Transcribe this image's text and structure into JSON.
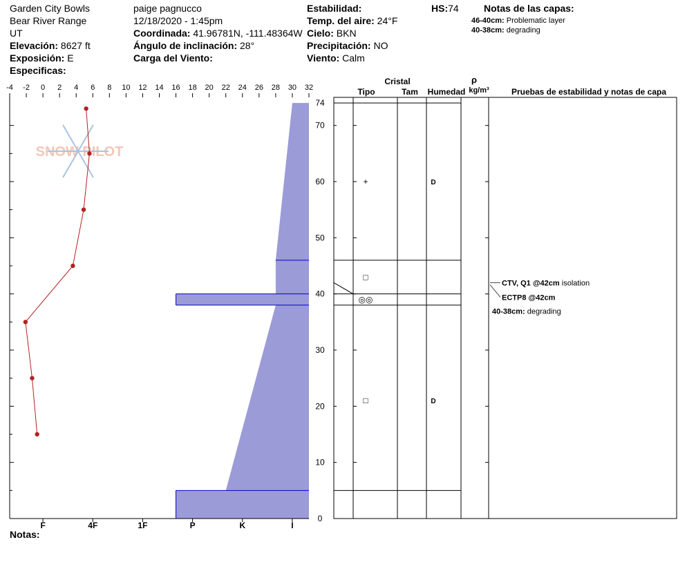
{
  "header": {
    "col1": {
      "location": "Garden City Bowls",
      "range": "Bear River Range",
      "state": "UT",
      "elevation_label": "Elevación:",
      "elevation": "8627 ft",
      "aspect_label": "Exposición:",
      "aspect": "E",
      "specifics_label": "Especificas:"
    },
    "col2": {
      "observer": "paige pagnucco",
      "datetime": "12/18/2020 - 1:45pm",
      "coord_label": "Coordinada:",
      "coord": "41.96781N, -111.48364W",
      "incline_label": "Ángulo de inclinación:",
      "incline": "28°",
      "wind_load_label": "Carga del Viento:"
    },
    "col3": {
      "stability_label": "Estabilidad:",
      "air_temp_label": "Temp. del aire:",
      "air_temp": "24°F",
      "sky_label": "Cielo:",
      "sky": "BKN",
      "precip_label": "Precipitación:",
      "precip": "NO",
      "wind_label": "Viento:",
      "wind": "Calm"
    },
    "hs_label": "HS:",
    "hs": "74",
    "layer_notes": {
      "title": "Notas de las capas:",
      "items": [
        {
          "range": "46-40cm:",
          "text": "Problematic layer"
        },
        {
          "range": "40-38cm:",
          "text": "degrading"
        }
      ]
    }
  },
  "watermark": "SNOW PILOT",
  "footer": {
    "notes_label": "Notas:"
  },
  "right_table": {
    "cristal": "Cristal",
    "rho": "ρ",
    "tipo": "Tipo",
    "tam": "Tam",
    "humedad": "Humedad",
    "density_unit": "kg/m³",
    "pruebas": "Pruebas de estabilidad y notas de capa",
    "layer_boundaries": [
      74,
      46,
      40,
      38,
      5
    ],
    "crystals": [
      {
        "depth": 60,
        "symbol": "+",
        "moisture": "D"
      },
      {
        "depth": 43,
        "symbol": "□",
        "moisture": ""
      },
      {
        "depth": 39,
        "symbol": "◎◎",
        "moisture": ""
      },
      {
        "depth": 21,
        "symbol": "□",
        "moisture": "D"
      }
    ],
    "tests": [
      {
        "bold": "CTV, Q1 @42cm",
        "text": "isolation"
      },
      {
        "bold": "ECTP8 @42cm",
        "text": ""
      },
      {
        "bold": "40-38cm:",
        "text": "degrading"
      }
    ]
  },
  "chart_data": {
    "type": "line",
    "temperature_axis": {
      "label": "",
      "ticks": [
        -4,
        -2,
        0,
        2,
        4,
        6,
        8,
        10,
        12,
        14,
        16,
        18,
        20,
        22,
        24,
        26,
        28,
        30,
        32
      ],
      "range": [
        -4,
        32
      ],
      "direction": "reversed"
    },
    "depth_axis": {
      "ticks": [
        0,
        10,
        20,
        30,
        40,
        50,
        60,
        70
      ],
      "top_label": "74",
      "range": [
        0,
        74
      ]
    },
    "hardness_axis": {
      "ticks": [
        {
          "label": "I",
          "temp": 30
        },
        {
          "label": "K",
          "temp": 24
        },
        {
          "label": "P",
          "temp": 18
        },
        {
          "label": "1F",
          "temp": 12
        },
        {
          "label": "4F",
          "temp": 6
        },
        {
          "label": "F",
          "temp": 0
        }
      ]
    },
    "temperature_profile": {
      "x_temp": [
        5.2,
        5.6,
        4.9,
        3.6,
        -2.1,
        -1.3,
        -0.7
      ],
      "y_depth": [
        73,
        65,
        55,
        45,
        35,
        25,
        15
      ]
    },
    "hardness_profile_polygon": {
      "x_temp": [
        32,
        30,
        30,
        28,
        28,
        16,
        16,
        28,
        28,
        22,
        16,
        16,
        32
      ],
      "y_depth": [
        74,
        74,
        74,
        46,
        40,
        40,
        38,
        38,
        38,
        5,
        5,
        0,
        0
      ]
    },
    "colors": {
      "temp_line": "#b22222",
      "hardness_fill": "#9b9bd8",
      "hardness_edge": "#0000cc"
    }
  }
}
